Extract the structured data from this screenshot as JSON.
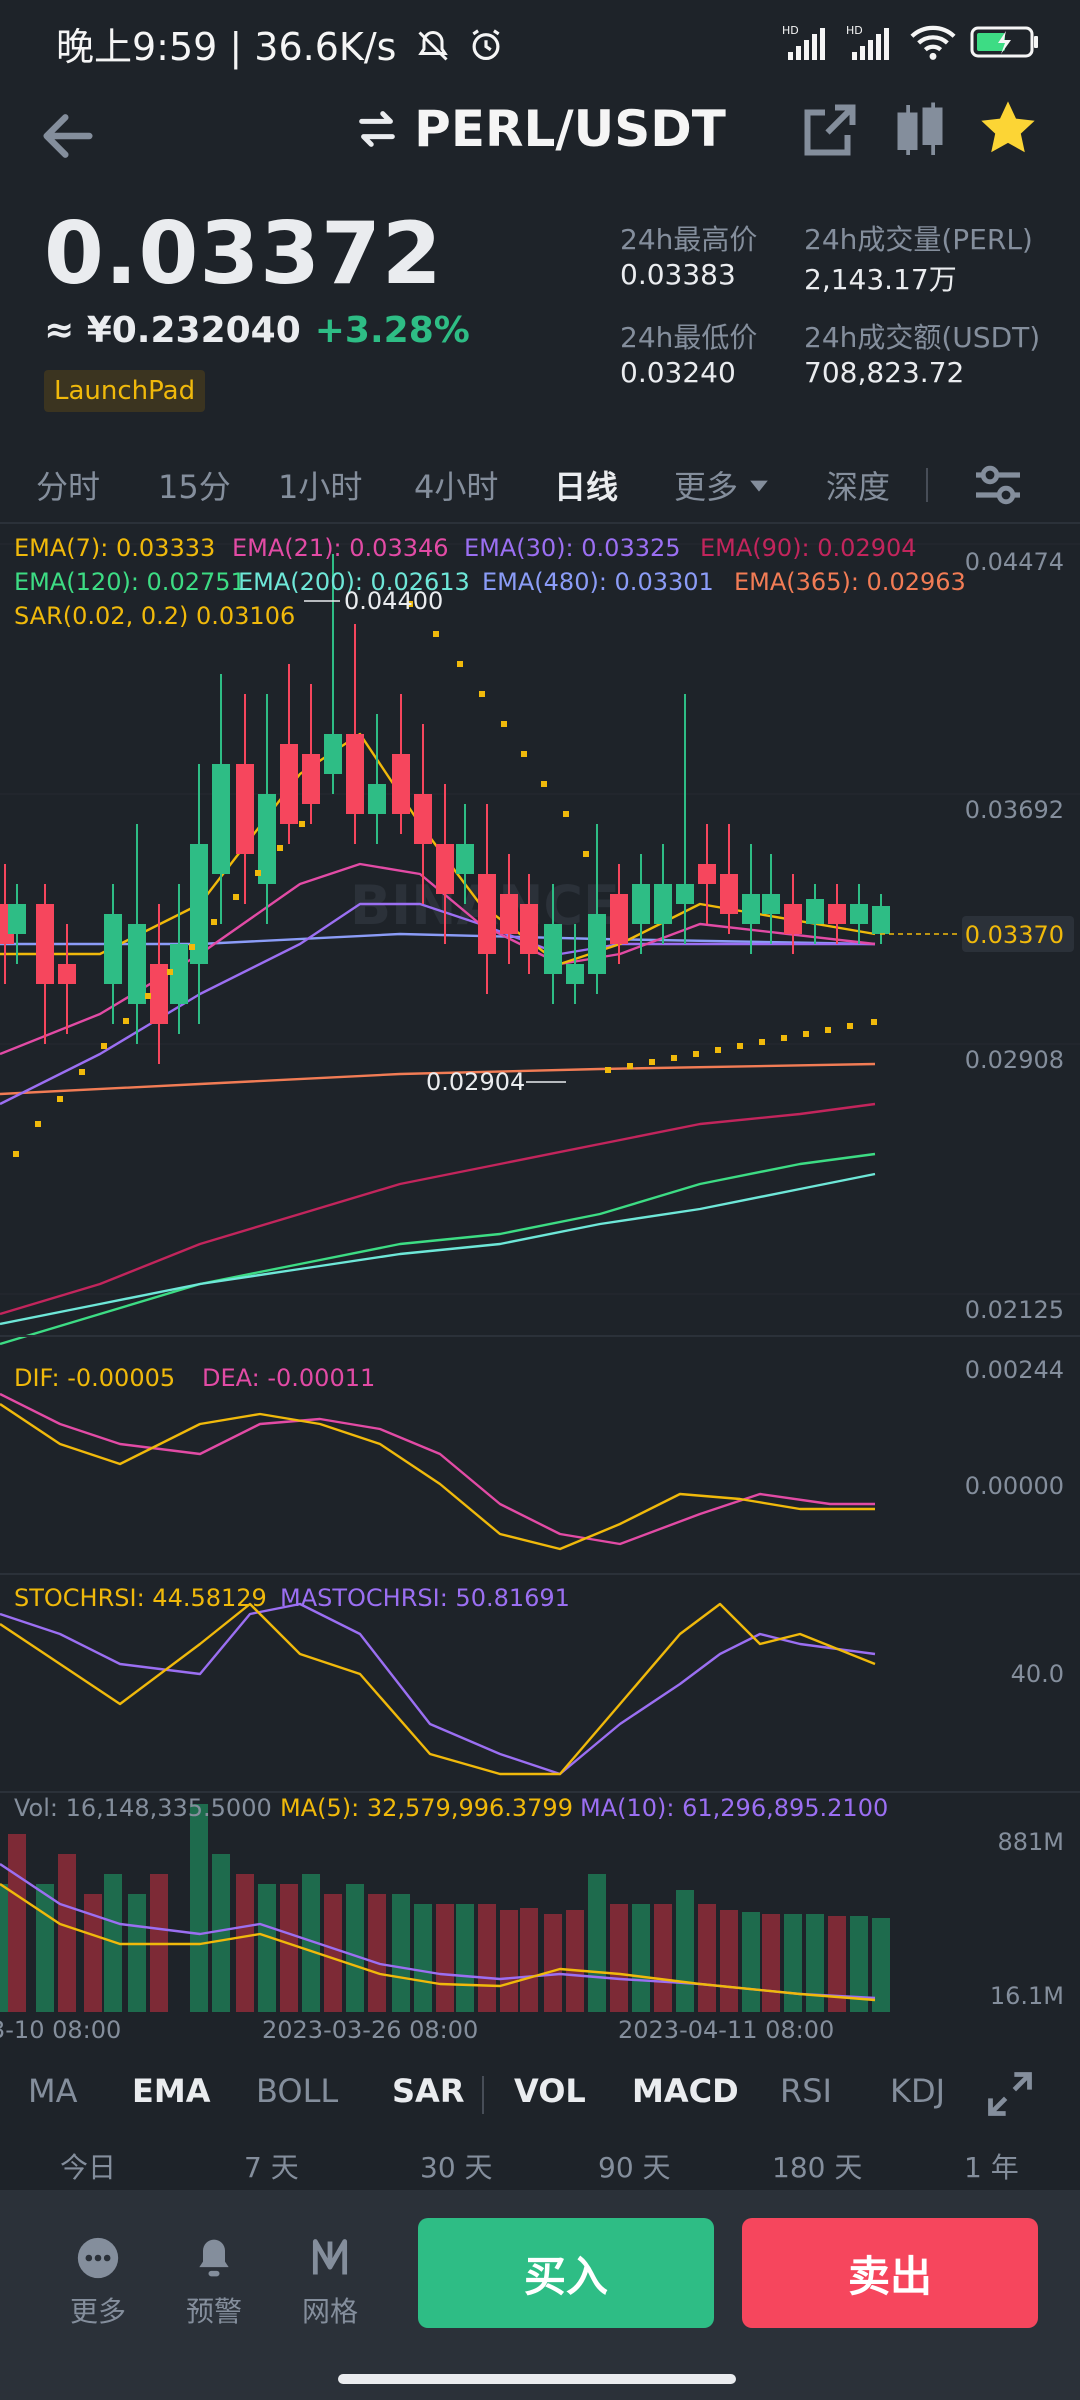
{
  "status_bar": {
    "left_text": "晚上9:59 | 36.6K/s",
    "net1": "HD",
    "net2": "HD"
  },
  "header": {
    "pair": "PERL/USDT"
  },
  "price": {
    "last": "0.03372",
    "cny": "≈ ¥0.232040",
    "change": "+3.28%",
    "badge": "LaunchPad"
  },
  "stats": {
    "high_label": "24h最高价",
    "high_value": "0.03383",
    "low_label": "24h最低价",
    "low_value": "0.03240",
    "vol_label": "24h成交量(PERL)",
    "vol_value": "2,143.17万",
    "amount_label": "24h成交额(USDT)",
    "amount_value": "708,823.72"
  },
  "intervals": [
    "分时",
    "15分",
    "1小时",
    "4小时",
    "日线",
    "更多",
    "深度"
  ],
  "active_interval": "日线",
  "chart_data": {
    "type": "candlestick",
    "price_axis": [
      "0.04474",
      "0.03692",
      "0.02908",
      "0.02125"
    ],
    "current_price_tag": "0.03370",
    "high_marker": "0.04400",
    "low_marker": "0.02904",
    "ema_legend_row1": [
      "EMA(7): 0.03333",
      "EMA(21): 0.03346",
      "EMA(30): 0.03325",
      "EMA(90): 0.02904"
    ],
    "ema_legend_row2": [
      "EMA(120): 0.02751",
      "EMA(200): 0.02613",
      "EMA(480): 0.03301",
      "EMA(365): 0.02963"
    ],
    "sar_legend": "SAR(0.02, 0.2)  0.03106",
    "macd_legend": [
      "DIF: -0.00005",
      "DEA: -0.00011"
    ],
    "macd_axis": [
      "0.00244",
      "0.00000"
    ],
    "stochrsi_legend": [
      "STOCHRSI: 44.58129",
      "MASTOCHRSI: 50.81691"
    ],
    "stochrsi_axis": [
      "40.0"
    ],
    "vol_legend": [
      "Vol: 16,148,335.5000",
      "MA(5): 32,579,996.3799",
      "MA(10): 61,296,895.2100"
    ],
    "vol_axis": [
      "881M",
      "16.1M"
    ],
    "x_labels": [
      "3-10 08:00",
      "2023-03-26 08:00",
      "2023-04-11 08:00"
    ],
    "watermark": "BINANCE",
    "colors": {
      "up": "#2ebd85",
      "down": "#f6465d",
      "ema7": "#f0b90b",
      "ema21": "#e24ba5",
      "ema30": "#9b6ff2",
      "ema90": "#c2255c",
      "ema120": "#3ddc84",
      "ema200": "#6ee7d8",
      "ema480": "#8b9cf7",
      "ema365": "#f27c55",
      "sar": "#f0b90b"
    }
  },
  "indicators": [
    "MA",
    "EMA",
    "BOLL",
    "SAR",
    "VOL",
    "MACD",
    "RSI",
    "KDJ"
  ],
  "ranges": [
    "今日",
    "7 天",
    "30 天",
    "90 天",
    "180 天",
    "1 年"
  ],
  "actions": {
    "more": "更多",
    "alert": "预警",
    "grid": "网格",
    "buy": "买入",
    "sell": "卖出"
  }
}
